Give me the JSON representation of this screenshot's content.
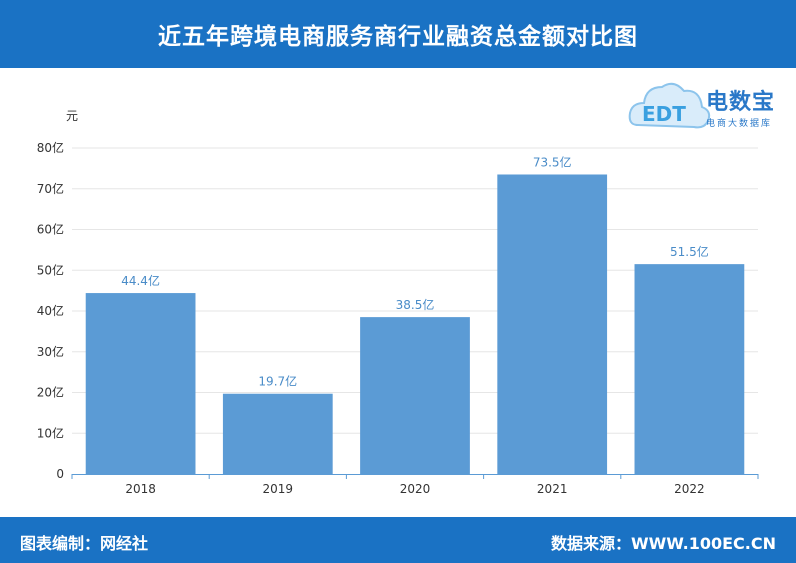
{
  "title": "近五年跨境电商服务商行业融资总金额对比图",
  "footer": {
    "editor": "图表编制：网经社",
    "source": "数据来源：WWW.100EC.CN"
  },
  "logo": {
    "name": "电数宝",
    "tagline": "电商大数据库",
    "mark": "EDT"
  },
  "colors": {
    "header": "#1a72c4",
    "bar": "#5b9bd5",
    "label": "#4a8cc8"
  },
  "chart_data": {
    "type": "bar",
    "unit_label": "元",
    "categories": [
      "2018",
      "2019",
      "2020",
      "2021",
      "2022"
    ],
    "values": [
      44.4,
      19.7,
      38.5,
      73.5,
      51.5
    ],
    "data_labels": [
      "44.4亿",
      "19.7亿",
      "38.5亿",
      "73.5亿",
      "51.5亿"
    ],
    "yticks": [
      "0",
      "10亿",
      "20亿",
      "30亿",
      "40亿",
      "50亿",
      "60亿",
      "70亿",
      "80亿"
    ],
    "ylim": [
      0,
      80
    ],
    "grid": true
  }
}
